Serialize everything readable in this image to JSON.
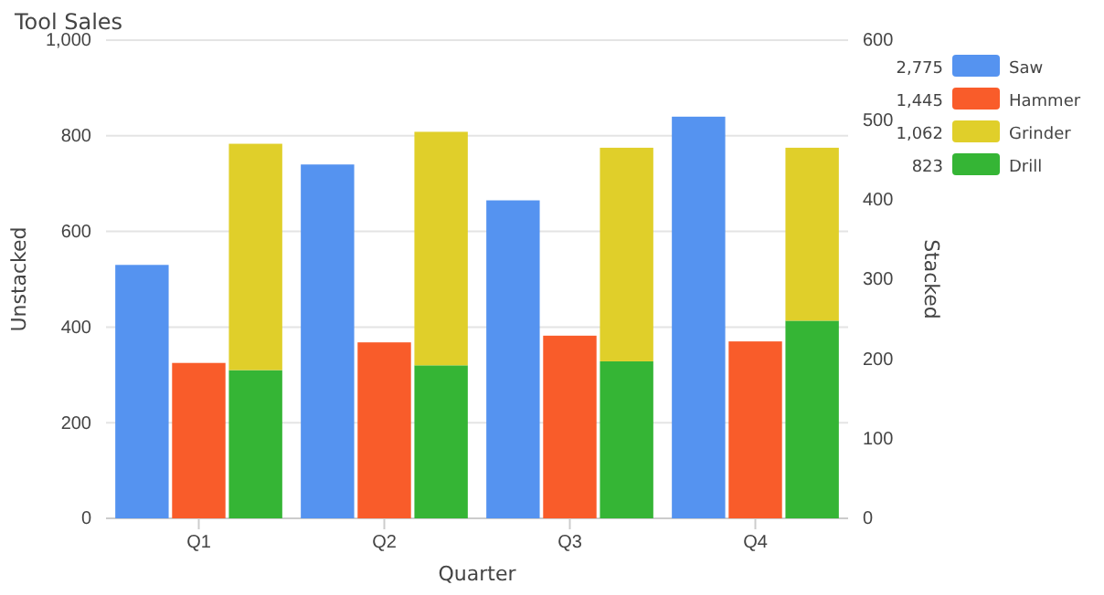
{
  "chart_data": [
    {
      "type": "bar",
      "title": "Tool Sales",
      "xlabel": "Quarter",
      "ylabel": "Unstacked",
      "categories": [
        "Q1",
        "Q2",
        "Q3",
        "Q4"
      ],
      "series": [
        {
          "name": "Saw",
          "color": "#5593f0",
          "values": [
            530,
            740,
            665,
            840
          ]
        },
        {
          "name": "Hammer",
          "color": "#f95c2a",
          "values": [
            325,
            368,
            382,
            370
          ]
        }
      ],
      "ylim": [
        0,
        1000
      ],
      "yticks": [
        0,
        200,
        400,
        600,
        800,
        {
          "value": 1000,
          "label": "1,000"
        }
      ],
      "annotations": [
        "2,775",
        "1,445"
      ],
      "grid": "y",
      "legend": "right"
    },
    {
      "type": "bar",
      "y2label": "Stacked",
      "stacked": true,
      "categories": [
        "Q1",
        "Q2",
        "Q3",
        "Q4"
      ],
      "series": [
        {
          "name": "Drill",
          "color": "#35b535",
          "axis": "y2",
          "values": [
            186,
            192,
            197,
            248
          ]
        },
        {
          "name": "Grinder",
          "color": "#e0cf2a",
          "axis": "y2",
          "values": [
            284,
            293,
            268,
            217
          ]
        }
      ],
      "y2lim": [
        0,
        600
      ],
      "y2ticks": [
        0,
        100,
        200,
        300,
        400,
        500,
        600
      ],
      "annotations": [
        "823",
        "1,062"
      ],
      "tick_labels": "y",
      "legend": "right"
    }
  ]
}
